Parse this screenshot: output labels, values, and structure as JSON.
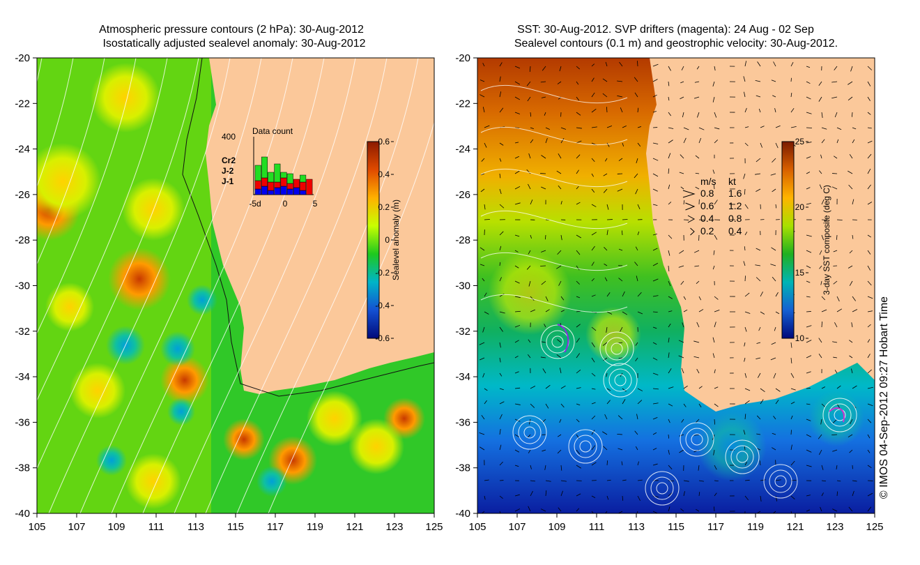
{
  "left_panel": {
    "title_line1": "Atmospheric pressure contours (2 hPa): 30-Aug-2012",
    "title_line2": "Isostatically adjusted sealevel anomaly: 30-Aug-2012",
    "x_ticks": [
      "105",
      "107",
      "109",
      "111",
      "113",
      "115",
      "117",
      "119",
      "121",
      "123",
      "125"
    ],
    "y_ticks": [
      "-20",
      "-22",
      "-24",
      "-26",
      "-28",
      "-30",
      "-32",
      "-34",
      "-36",
      "-38",
      "-40"
    ],
    "colorbar": {
      "label": "Sealevel anomaly (m)",
      "ticks": [
        "0.6",
        "0.4",
        "0.2",
        "0",
        "-0.2",
        "-0.4",
        "-0.6"
      ],
      "colors": [
        "#8b1a00",
        "#e04a00",
        "#ffb000",
        "#c8ff00",
        "#1ec81e",
        "#00b4c8",
        "#1450d2",
        "#000a7a"
      ]
    },
    "inset": {
      "title": "Data count",
      "y_max_label": "400",
      "x_ticks": [
        "-5d",
        "0",
        "5"
      ],
      "series": [
        {
          "name": "Cr2",
          "color": "#22dd22"
        },
        {
          "name": "J-2",
          "color": "#ee0000"
        },
        {
          "name": "J-1",
          "color": "#0000ee"
        }
      ],
      "stacked_counts": {
        "categories": [
          -4,
          -3,
          -2,
          -1,
          0,
          1,
          2,
          3,
          4
        ],
        "J-1": [
          40,
          60,
          30,
          50,
          60,
          40,
          50,
          30,
          0
        ],
        "J-2": [
          60,
          60,
          60,
          40,
          60,
          40,
          60,
          60,
          110
        ],
        "Cr2": [
          110,
          150,
          70,
          130,
          40,
          70,
          0,
          50,
          0
        ]
      }
    }
  },
  "right_panel": {
    "title_line1": "SST: 30-Aug-2012. SVP drifters (magenta): 24 Aug - 02 Sep",
    "title_line2": "Sealevel contours (0.1 m) and geostrophic velocity: 30-Aug-2012.",
    "x_ticks": [
      "105",
      "107",
      "109",
      "111",
      "113",
      "115",
      "117",
      "119",
      "121",
      "123",
      "125"
    ],
    "y_ticks": [
      "-20",
      "-22",
      "-24",
      "-26",
      "-28",
      "-30",
      "-32",
      "-34",
      "-36",
      "-38",
      "-40"
    ],
    "colorbar": {
      "label": "3-day SST composite (deg C)",
      "ticks": [
        "25",
        "20",
        "15",
        "10"
      ],
      "colors": [
        "#7a1a00",
        "#d86000",
        "#ffb400",
        "#a8e000",
        "#20b020",
        "#00b4b4",
        "#1460d2",
        "#00087a"
      ]
    },
    "velocity_legend": {
      "header_ms": "m/s",
      "header_kt": "kt",
      "rows": [
        {
          "ms": "0.8",
          "kt": "1.6"
        },
        {
          "ms": "0.6",
          "kt": "1.2"
        },
        {
          "ms": "0.4",
          "kt": "0.8"
        },
        {
          "ms": "0.2",
          "kt": "0.4"
        }
      ]
    }
  },
  "credit": "© IMOS 04-Sep-2012 09:27 Hobart Time",
  "colors": {
    "land": "#fbc89a"
  }
}
